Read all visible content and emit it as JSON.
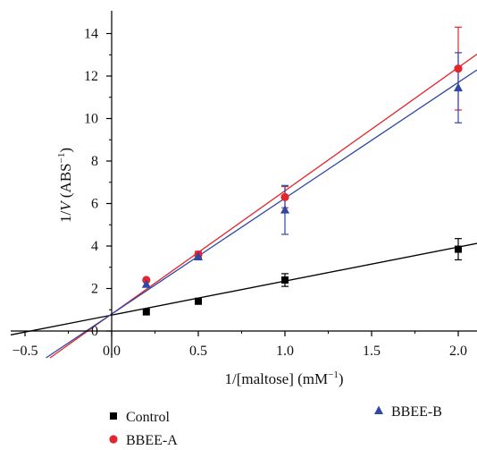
{
  "chart_data": {
    "type": "scatter",
    "xlabel": "1/[maltose] (mM",
    "xlabel_sup": "−1",
    "xlabel_end": ")",
    "ylabel_prefix": "1/",
    "ylabel_var": "V",
    "ylabel_unit": " (ABS",
    "ylabel_sup": "−1",
    "ylabel_end": ")",
    "xlim": [
      -0.55,
      2.1
    ],
    "ylim": [
      -1.3,
      15.3
    ],
    "x_ticks": [
      -0.5,
      0.0,
      0.5,
      1.0,
      1.5,
      2.0
    ],
    "x_tick_labels": [
      "−0.5",
      "0.0",
      "0.5",
      "1.0",
      "1.5",
      "2.0"
    ],
    "y_ticks": [
      0,
      2,
      4,
      6,
      8,
      10,
      12,
      14
    ],
    "y_tick_labels": [
      "0",
      "2",
      "4",
      "6",
      "8",
      "10",
      "12",
      "14"
    ],
    "grid": false,
    "legend_position": "bottom",
    "series": [
      {
        "name": "Control",
        "marker": "square",
        "color": "#000000",
        "x": [
          0.2,
          0.5,
          1.0,
          2.0
        ],
        "y": [
          0.9,
          1.4,
          2.4,
          3.85
        ],
        "err": [
          0.05,
          0.08,
          0.3,
          0.5
        ],
        "fit": {
          "intercept": 0.75,
          "slope": 1.6
        }
      },
      {
        "name": "BBEE-A",
        "marker": "circle",
        "color": "#e3262d",
        "x": [
          0.2,
          0.5,
          1.0,
          2.0
        ],
        "y": [
          2.4,
          3.6,
          6.3,
          12.35
        ],
        "err": [
          0.1,
          0.15,
          0.5,
          1.95
        ],
        "fit": {
          "intercept": 0.8,
          "slope": 5.8
        }
      },
      {
        "name": "BBEE-B",
        "marker": "triangle",
        "color": "#2f47a5",
        "x": [
          0.2,
          0.5,
          1.0,
          2.0
        ],
        "y": [
          2.2,
          3.5,
          5.7,
          11.45
        ],
        "err": [
          0.1,
          0.15,
          1.15,
          1.65
        ],
        "fit": {
          "intercept": 0.8,
          "slope": 5.45
        }
      }
    ]
  }
}
